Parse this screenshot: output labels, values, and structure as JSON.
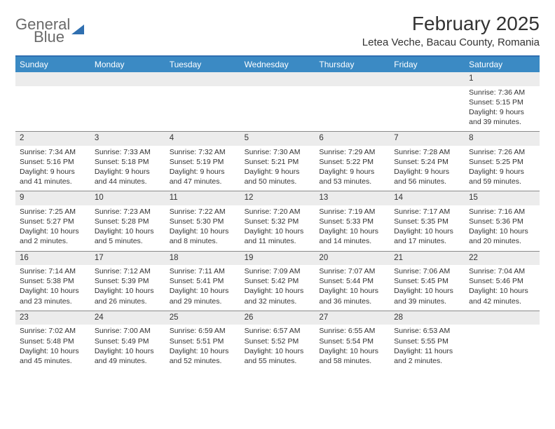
{
  "logo": {
    "line1": "General",
    "line2": "Blue"
  },
  "title": "February 2025",
  "location": "Letea Veche, Bacau County, Romania",
  "colors": {
    "accent": "#3b8ac4",
    "accent_border": "#2f6fb0",
    "text": "#333333",
    "daybar_bg": "#ececec",
    "week_divider": "#8a8a8a"
  },
  "day_names": [
    "Sunday",
    "Monday",
    "Tuesday",
    "Wednesday",
    "Thursday",
    "Friday",
    "Saturday"
  ],
  "weeks": [
    [
      {
        "n": "",
        "sr": "",
        "ss": "",
        "dl": ""
      },
      {
        "n": "",
        "sr": "",
        "ss": "",
        "dl": ""
      },
      {
        "n": "",
        "sr": "",
        "ss": "",
        "dl": ""
      },
      {
        "n": "",
        "sr": "",
        "ss": "",
        "dl": ""
      },
      {
        "n": "",
        "sr": "",
        "ss": "",
        "dl": ""
      },
      {
        "n": "",
        "sr": "",
        "ss": "",
        "dl": ""
      },
      {
        "n": "1",
        "sr": "Sunrise: 7:36 AM",
        "ss": "Sunset: 5:15 PM",
        "dl": "Daylight: 9 hours and 39 minutes."
      }
    ],
    [
      {
        "n": "2",
        "sr": "Sunrise: 7:34 AM",
        "ss": "Sunset: 5:16 PM",
        "dl": "Daylight: 9 hours and 41 minutes."
      },
      {
        "n": "3",
        "sr": "Sunrise: 7:33 AM",
        "ss": "Sunset: 5:18 PM",
        "dl": "Daylight: 9 hours and 44 minutes."
      },
      {
        "n": "4",
        "sr": "Sunrise: 7:32 AM",
        "ss": "Sunset: 5:19 PM",
        "dl": "Daylight: 9 hours and 47 minutes."
      },
      {
        "n": "5",
        "sr": "Sunrise: 7:30 AM",
        "ss": "Sunset: 5:21 PM",
        "dl": "Daylight: 9 hours and 50 minutes."
      },
      {
        "n": "6",
        "sr": "Sunrise: 7:29 AM",
        "ss": "Sunset: 5:22 PM",
        "dl": "Daylight: 9 hours and 53 minutes."
      },
      {
        "n": "7",
        "sr": "Sunrise: 7:28 AM",
        "ss": "Sunset: 5:24 PM",
        "dl": "Daylight: 9 hours and 56 minutes."
      },
      {
        "n": "8",
        "sr": "Sunrise: 7:26 AM",
        "ss": "Sunset: 5:25 PM",
        "dl": "Daylight: 9 hours and 59 minutes."
      }
    ],
    [
      {
        "n": "9",
        "sr": "Sunrise: 7:25 AM",
        "ss": "Sunset: 5:27 PM",
        "dl": "Daylight: 10 hours and 2 minutes."
      },
      {
        "n": "10",
        "sr": "Sunrise: 7:23 AM",
        "ss": "Sunset: 5:28 PM",
        "dl": "Daylight: 10 hours and 5 minutes."
      },
      {
        "n": "11",
        "sr": "Sunrise: 7:22 AM",
        "ss": "Sunset: 5:30 PM",
        "dl": "Daylight: 10 hours and 8 minutes."
      },
      {
        "n": "12",
        "sr": "Sunrise: 7:20 AM",
        "ss": "Sunset: 5:32 PM",
        "dl": "Daylight: 10 hours and 11 minutes."
      },
      {
        "n": "13",
        "sr": "Sunrise: 7:19 AM",
        "ss": "Sunset: 5:33 PM",
        "dl": "Daylight: 10 hours and 14 minutes."
      },
      {
        "n": "14",
        "sr": "Sunrise: 7:17 AM",
        "ss": "Sunset: 5:35 PM",
        "dl": "Daylight: 10 hours and 17 minutes."
      },
      {
        "n": "15",
        "sr": "Sunrise: 7:16 AM",
        "ss": "Sunset: 5:36 PM",
        "dl": "Daylight: 10 hours and 20 minutes."
      }
    ],
    [
      {
        "n": "16",
        "sr": "Sunrise: 7:14 AM",
        "ss": "Sunset: 5:38 PM",
        "dl": "Daylight: 10 hours and 23 minutes."
      },
      {
        "n": "17",
        "sr": "Sunrise: 7:12 AM",
        "ss": "Sunset: 5:39 PM",
        "dl": "Daylight: 10 hours and 26 minutes."
      },
      {
        "n": "18",
        "sr": "Sunrise: 7:11 AM",
        "ss": "Sunset: 5:41 PM",
        "dl": "Daylight: 10 hours and 29 minutes."
      },
      {
        "n": "19",
        "sr": "Sunrise: 7:09 AM",
        "ss": "Sunset: 5:42 PM",
        "dl": "Daylight: 10 hours and 32 minutes."
      },
      {
        "n": "20",
        "sr": "Sunrise: 7:07 AM",
        "ss": "Sunset: 5:44 PM",
        "dl": "Daylight: 10 hours and 36 minutes."
      },
      {
        "n": "21",
        "sr": "Sunrise: 7:06 AM",
        "ss": "Sunset: 5:45 PM",
        "dl": "Daylight: 10 hours and 39 minutes."
      },
      {
        "n": "22",
        "sr": "Sunrise: 7:04 AM",
        "ss": "Sunset: 5:46 PM",
        "dl": "Daylight: 10 hours and 42 minutes."
      }
    ],
    [
      {
        "n": "23",
        "sr": "Sunrise: 7:02 AM",
        "ss": "Sunset: 5:48 PM",
        "dl": "Daylight: 10 hours and 45 minutes."
      },
      {
        "n": "24",
        "sr": "Sunrise: 7:00 AM",
        "ss": "Sunset: 5:49 PM",
        "dl": "Daylight: 10 hours and 49 minutes."
      },
      {
        "n": "25",
        "sr": "Sunrise: 6:59 AM",
        "ss": "Sunset: 5:51 PM",
        "dl": "Daylight: 10 hours and 52 minutes."
      },
      {
        "n": "26",
        "sr": "Sunrise: 6:57 AM",
        "ss": "Sunset: 5:52 PM",
        "dl": "Daylight: 10 hours and 55 minutes."
      },
      {
        "n": "27",
        "sr": "Sunrise: 6:55 AM",
        "ss": "Sunset: 5:54 PM",
        "dl": "Daylight: 10 hours and 58 minutes."
      },
      {
        "n": "28",
        "sr": "Sunrise: 6:53 AM",
        "ss": "Sunset: 5:55 PM",
        "dl": "Daylight: 11 hours and 2 minutes."
      },
      {
        "n": "",
        "sr": "",
        "ss": "",
        "dl": ""
      }
    ]
  ]
}
